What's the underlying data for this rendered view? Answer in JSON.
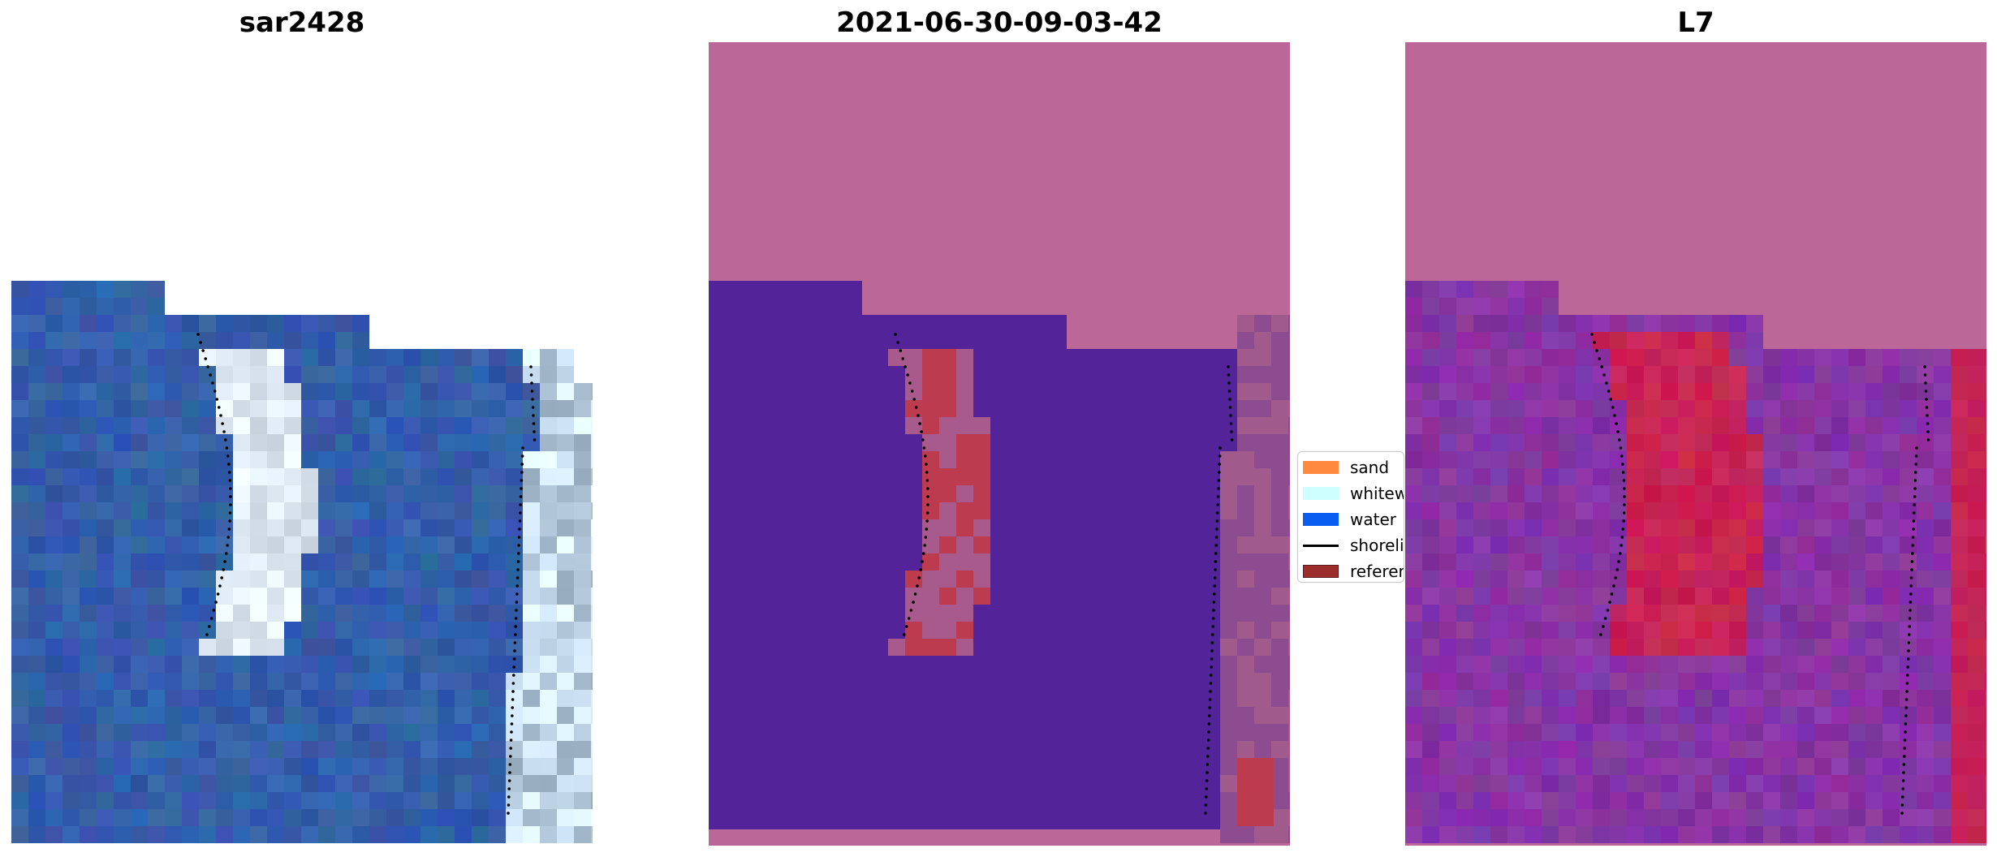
{
  "panels": [
    {
      "title": "sar2428"
    },
    {
      "title": "2021-06-30-09-03-42"
    },
    {
      "title": "L7"
    }
  ],
  "legend": {
    "items": [
      {
        "label": "sand",
        "color": "#ff8a3d",
        "kind": "patch"
      },
      {
        "label": "whitewater",
        "color": "#ccfffe",
        "kind": "patch"
      },
      {
        "label": "water",
        "color": "#0a5eef",
        "kind": "patch"
      },
      {
        "label": "shoreline",
        "color": "#000000",
        "kind": "line"
      },
      {
        "label": "reference shoreline",
        "color": "#9b2d2d",
        "kind": "patch"
      }
    ]
  },
  "colors": {
    "background": "#ffffff",
    "classified_sand": "#bb6797",
    "classified_water": "#532399",
    "classified_white": "#bd3b4f",
    "sar_water": "#2f5aa4",
    "index_magenta": "#8e3b9e",
    "index_red": "#c71546"
  }
}
